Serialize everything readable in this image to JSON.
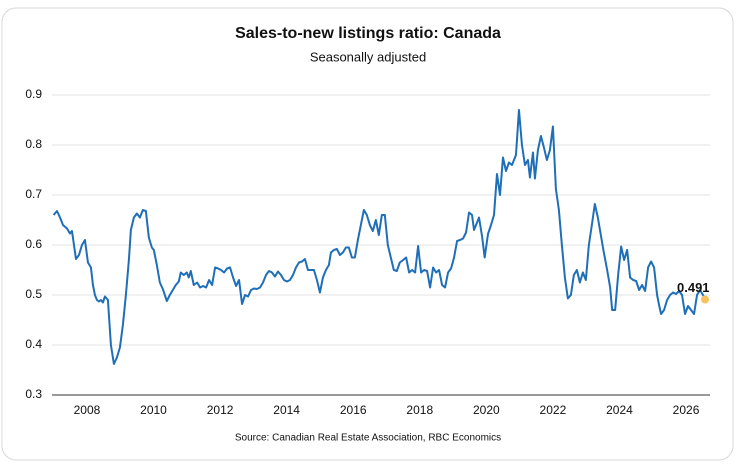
{
  "chart_data": {
    "type": "line",
    "title": "Sales-to-new listings ratio: Canada",
    "subtitle": "Seasonally adjusted",
    "source": "Source: Canadian Real Estate Association, RBC Economics",
    "x": [
      2007.0,
      2007.1,
      2007.19,
      2007.28,
      2007.4,
      2007.49,
      2007.55,
      2007.61,
      2007.67,
      2007.76,
      2007.85,
      2007.94,
      2008.03,
      2008.12,
      2008.18,
      2008.24,
      2008.3,
      2008.36,
      2008.42,
      2008.48,
      2008.54,
      2008.63,
      2008.72,
      2008.81,
      2008.9,
      2008.99,
      2009.08,
      2009.17,
      2009.26,
      2009.32,
      2009.41,
      2009.5,
      2009.59,
      2009.68,
      2009.77,
      2009.86,
      2009.95,
      2010.01,
      2010.1,
      2010.19,
      2010.28,
      2010.4,
      2010.49,
      2010.58,
      2010.67,
      2010.76,
      2010.82,
      2010.91,
      2011.0,
      2011.06,
      2011.12,
      2011.21,
      2011.31,
      2011.4,
      2011.49,
      2011.58,
      2011.67,
      2011.76,
      2011.85,
      2011.94,
      2012.03,
      2012.12,
      2012.21,
      2012.3,
      2012.39,
      2012.48,
      2012.57,
      2012.66,
      2012.75,
      2012.84,
      2012.93,
      2013.02,
      2013.11,
      2013.2,
      2013.29,
      2013.38,
      2013.47,
      2013.56,
      2013.65,
      2013.74,
      2013.83,
      2013.92,
      2014.01,
      2014.1,
      2014.19,
      2014.28,
      2014.37,
      2014.46,
      2014.55,
      2014.64,
      2014.73,
      2014.82,
      2014.91,
      2015.0,
      2015.09,
      2015.18,
      2015.27,
      2015.33,
      2015.42,
      2015.51,
      2015.6,
      2015.69,
      2015.78,
      2015.87,
      2015.96,
      2016.05,
      2016.14,
      2016.23,
      2016.32,
      2016.41,
      2016.5,
      2016.59,
      2016.68,
      2016.77,
      2016.86,
      2016.95,
      2017.04,
      2017.13,
      2017.22,
      2017.31,
      2017.4,
      2017.5,
      2017.59,
      2017.68,
      2017.77,
      2017.86,
      2017.95,
      2018.04,
      2018.13,
      2018.22,
      2018.31,
      2018.4,
      2018.49,
      2018.58,
      2018.67,
      2018.76,
      2018.85,
      2018.94,
      2019.03,
      2019.12,
      2019.21,
      2019.3,
      2019.39,
      2019.48,
      2019.57,
      2019.63,
      2019.69,
      2019.78,
      2019.87,
      2019.95,
      2020.05,
      2020.14,
      2020.23,
      2020.32,
      2020.41,
      2020.5,
      2020.59,
      2020.68,
      2020.77,
      2020.89,
      2020.98,
      2021.07,
      2021.16,
      2021.25,
      2021.31,
      2021.4,
      2021.46,
      2021.55,
      2021.64,
      2021.73,
      2021.82,
      2021.91,
      2022.0,
      2022.09,
      2022.18,
      2022.27,
      2022.36,
      2022.45,
      2022.54,
      2022.63,
      2022.72,
      2022.81,
      2022.9,
      2022.99,
      2023.08,
      2023.17,
      2023.26,
      2023.35,
      2023.44,
      2023.53,
      2023.63,
      2023.72,
      2023.78,
      2023.87,
      2023.96,
      2024.05,
      2024.14,
      2024.23,
      2024.32,
      2024.41,
      2024.5,
      2024.59,
      2024.68,
      2024.77,
      2024.86,
      2024.95,
      2025.04,
      2025.13,
      2025.19,
      2025.25,
      2025.34,
      2025.43,
      2025.52,
      2025.61,
      2025.7,
      2025.79,
      2025.88,
      2025.97,
      2026.06,
      2026.15,
      2026.24,
      2026.33,
      2026.42,
      2026.51,
      2026.57
    ],
    "series": [
      {
        "color": "#1f6fb8",
        "values": [
          0.66,
          0.668,
          0.655,
          0.64,
          0.633,
          0.623,
          0.628,
          0.6,
          0.572,
          0.58,
          0.6,
          0.61,
          0.565,
          0.555,
          0.52,
          0.5,
          0.49,
          0.487,
          0.49,
          0.485,
          0.497,
          0.49,
          0.4,
          0.362,
          0.375,
          0.395,
          0.44,
          0.5,
          0.57,
          0.63,
          0.655,
          0.663,
          0.655,
          0.67,
          0.668,
          0.615,
          0.595,
          0.59,
          0.56,
          0.525,
          0.512,
          0.488,
          0.5,
          0.51,
          0.52,
          0.527,
          0.545,
          0.54,
          0.545,
          0.535,
          0.548,
          0.52,
          0.525,
          0.515,
          0.518,
          0.515,
          0.53,
          0.52,
          0.555,
          0.553,
          0.55,
          0.545,
          0.553,
          0.555,
          0.535,
          0.518,
          0.53,
          0.482,
          0.5,
          0.497,
          0.51,
          0.513,
          0.512,
          0.515,
          0.525,
          0.54,
          0.548,
          0.545,
          0.537,
          0.547,
          0.54,
          0.53,
          0.527,
          0.53,
          0.54,
          0.555,
          0.565,
          0.567,
          0.572,
          0.55,
          0.55,
          0.55,
          0.53,
          0.505,
          0.535,
          0.55,
          0.56,
          0.585,
          0.59,
          0.592,
          0.58,
          0.585,
          0.595,
          0.595,
          0.575,
          0.575,
          0.61,
          0.64,
          0.67,
          0.66,
          0.64,
          0.628,
          0.65,
          0.62,
          0.66,
          0.66,
          0.6,
          0.575,
          0.55,
          0.548,
          0.565,
          0.57,
          0.575,
          0.545,
          0.55,
          0.545,
          0.598,
          0.545,
          0.55,
          0.548,
          0.515,
          0.555,
          0.545,
          0.55,
          0.52,
          0.515,
          0.545,
          0.553,
          0.575,
          0.608,
          0.61,
          0.613,
          0.625,
          0.665,
          0.66,
          0.63,
          0.64,
          0.655,
          0.618,
          0.575,
          0.622,
          0.64,
          0.66,
          0.742,
          0.7,
          0.775,
          0.748,
          0.765,
          0.76,
          0.78,
          0.87,
          0.8,
          0.76,
          0.77,
          0.735,
          0.785,
          0.733,
          0.79,
          0.818,
          0.795,
          0.77,
          0.79,
          0.837,
          0.712,
          0.67,
          0.6,
          0.535,
          0.493,
          0.5,
          0.54,
          0.55,
          0.525,
          0.545,
          0.53,
          0.6,
          0.64,
          0.682,
          0.655,
          0.62,
          0.585,
          0.55,
          0.515,
          0.47,
          0.47,
          0.54,
          0.597,
          0.57,
          0.59,
          0.535,
          0.53,
          0.528,
          0.51,
          0.52,
          0.508,
          0.555,
          0.567,
          0.555,
          0.5,
          0.48,
          0.462,
          0.47,
          0.49,
          0.5,
          0.505,
          0.502,
          0.508,
          0.5,
          0.462,
          0.478,
          0.47,
          0.462,
          0.5,
          0.51,
          0.5,
          0.491
        ]
      }
    ],
    "highlight_color": "#f7c25e",
    "xlim": [
      2006.95,
      2026.72
    ],
    "xticks": [
      2008,
      2010,
      2012,
      2014,
      2016,
      2018,
      2020,
      2022,
      2024,
      2026
    ],
    "ylim": [
      0.3,
      0.9
    ],
    "yticks": [
      0.3,
      0.4,
      0.5,
      0.6,
      0.7,
      0.8,
      0.9
    ],
    "grid": true
  }
}
